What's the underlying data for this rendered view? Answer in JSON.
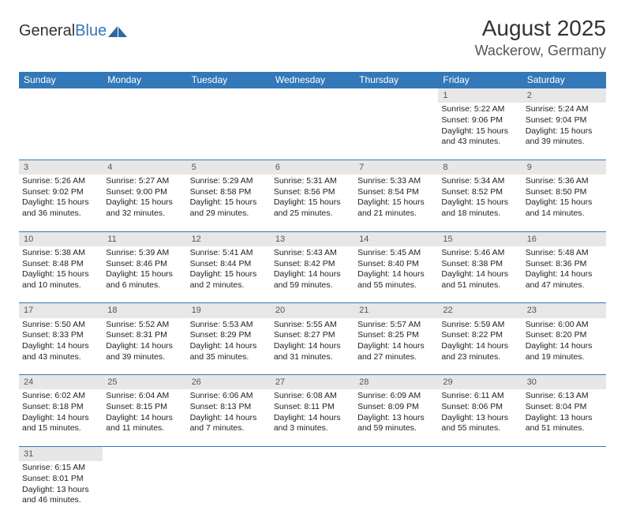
{
  "logo": {
    "text1": "General",
    "text2": "Blue",
    "shape_color": "#2d6aa3"
  },
  "header": {
    "month": "August 2025",
    "location": "Wackerow, Germany"
  },
  "colors": {
    "header_bg": "#3378b8",
    "header_text": "#ffffff",
    "daynum_bg": "#e7e7e7",
    "row_divider": "#3378b8",
    "text": "#222222"
  },
  "day_headers": [
    "Sunday",
    "Monday",
    "Tuesday",
    "Wednesday",
    "Thursday",
    "Friday",
    "Saturday"
  ],
  "weeks": [
    [
      null,
      null,
      null,
      null,
      null,
      {
        "n": "1",
        "sr": "Sunrise: 5:22 AM",
        "ss": "Sunset: 9:06 PM",
        "d1": "Daylight: 15 hours",
        "d2": "and 43 minutes."
      },
      {
        "n": "2",
        "sr": "Sunrise: 5:24 AM",
        "ss": "Sunset: 9:04 PM",
        "d1": "Daylight: 15 hours",
        "d2": "and 39 minutes."
      }
    ],
    [
      {
        "n": "3",
        "sr": "Sunrise: 5:26 AM",
        "ss": "Sunset: 9:02 PM",
        "d1": "Daylight: 15 hours",
        "d2": "and 36 minutes."
      },
      {
        "n": "4",
        "sr": "Sunrise: 5:27 AM",
        "ss": "Sunset: 9:00 PM",
        "d1": "Daylight: 15 hours",
        "d2": "and 32 minutes."
      },
      {
        "n": "5",
        "sr": "Sunrise: 5:29 AM",
        "ss": "Sunset: 8:58 PM",
        "d1": "Daylight: 15 hours",
        "d2": "and 29 minutes."
      },
      {
        "n": "6",
        "sr": "Sunrise: 5:31 AM",
        "ss": "Sunset: 8:56 PM",
        "d1": "Daylight: 15 hours",
        "d2": "and 25 minutes."
      },
      {
        "n": "7",
        "sr": "Sunrise: 5:33 AM",
        "ss": "Sunset: 8:54 PM",
        "d1": "Daylight: 15 hours",
        "d2": "and 21 minutes."
      },
      {
        "n": "8",
        "sr": "Sunrise: 5:34 AM",
        "ss": "Sunset: 8:52 PM",
        "d1": "Daylight: 15 hours",
        "d2": "and 18 minutes."
      },
      {
        "n": "9",
        "sr": "Sunrise: 5:36 AM",
        "ss": "Sunset: 8:50 PM",
        "d1": "Daylight: 15 hours",
        "d2": "and 14 minutes."
      }
    ],
    [
      {
        "n": "10",
        "sr": "Sunrise: 5:38 AM",
        "ss": "Sunset: 8:48 PM",
        "d1": "Daylight: 15 hours",
        "d2": "and 10 minutes."
      },
      {
        "n": "11",
        "sr": "Sunrise: 5:39 AM",
        "ss": "Sunset: 8:46 PM",
        "d1": "Daylight: 15 hours",
        "d2": "and 6 minutes."
      },
      {
        "n": "12",
        "sr": "Sunrise: 5:41 AM",
        "ss": "Sunset: 8:44 PM",
        "d1": "Daylight: 15 hours",
        "d2": "and 2 minutes."
      },
      {
        "n": "13",
        "sr": "Sunrise: 5:43 AM",
        "ss": "Sunset: 8:42 PM",
        "d1": "Daylight: 14 hours",
        "d2": "and 59 minutes."
      },
      {
        "n": "14",
        "sr": "Sunrise: 5:45 AM",
        "ss": "Sunset: 8:40 PM",
        "d1": "Daylight: 14 hours",
        "d2": "and 55 minutes."
      },
      {
        "n": "15",
        "sr": "Sunrise: 5:46 AM",
        "ss": "Sunset: 8:38 PM",
        "d1": "Daylight: 14 hours",
        "d2": "and 51 minutes."
      },
      {
        "n": "16",
        "sr": "Sunrise: 5:48 AM",
        "ss": "Sunset: 8:36 PM",
        "d1": "Daylight: 14 hours",
        "d2": "and 47 minutes."
      }
    ],
    [
      {
        "n": "17",
        "sr": "Sunrise: 5:50 AM",
        "ss": "Sunset: 8:33 PM",
        "d1": "Daylight: 14 hours",
        "d2": "and 43 minutes."
      },
      {
        "n": "18",
        "sr": "Sunrise: 5:52 AM",
        "ss": "Sunset: 8:31 PM",
        "d1": "Daylight: 14 hours",
        "d2": "and 39 minutes."
      },
      {
        "n": "19",
        "sr": "Sunrise: 5:53 AM",
        "ss": "Sunset: 8:29 PM",
        "d1": "Daylight: 14 hours",
        "d2": "and 35 minutes."
      },
      {
        "n": "20",
        "sr": "Sunrise: 5:55 AM",
        "ss": "Sunset: 8:27 PM",
        "d1": "Daylight: 14 hours",
        "d2": "and 31 minutes."
      },
      {
        "n": "21",
        "sr": "Sunrise: 5:57 AM",
        "ss": "Sunset: 8:25 PM",
        "d1": "Daylight: 14 hours",
        "d2": "and 27 minutes."
      },
      {
        "n": "22",
        "sr": "Sunrise: 5:59 AM",
        "ss": "Sunset: 8:22 PM",
        "d1": "Daylight: 14 hours",
        "d2": "and 23 minutes."
      },
      {
        "n": "23",
        "sr": "Sunrise: 6:00 AM",
        "ss": "Sunset: 8:20 PM",
        "d1": "Daylight: 14 hours",
        "d2": "and 19 minutes."
      }
    ],
    [
      {
        "n": "24",
        "sr": "Sunrise: 6:02 AM",
        "ss": "Sunset: 8:18 PM",
        "d1": "Daylight: 14 hours",
        "d2": "and 15 minutes."
      },
      {
        "n": "25",
        "sr": "Sunrise: 6:04 AM",
        "ss": "Sunset: 8:15 PM",
        "d1": "Daylight: 14 hours",
        "d2": "and 11 minutes."
      },
      {
        "n": "26",
        "sr": "Sunrise: 6:06 AM",
        "ss": "Sunset: 8:13 PM",
        "d1": "Daylight: 14 hours",
        "d2": "and 7 minutes."
      },
      {
        "n": "27",
        "sr": "Sunrise: 6:08 AM",
        "ss": "Sunset: 8:11 PM",
        "d1": "Daylight: 14 hours",
        "d2": "and 3 minutes."
      },
      {
        "n": "28",
        "sr": "Sunrise: 6:09 AM",
        "ss": "Sunset: 8:09 PM",
        "d1": "Daylight: 13 hours",
        "d2": "and 59 minutes."
      },
      {
        "n": "29",
        "sr": "Sunrise: 6:11 AM",
        "ss": "Sunset: 8:06 PM",
        "d1": "Daylight: 13 hours",
        "d2": "and 55 minutes."
      },
      {
        "n": "30",
        "sr": "Sunrise: 6:13 AM",
        "ss": "Sunset: 8:04 PM",
        "d1": "Daylight: 13 hours",
        "d2": "and 51 minutes."
      }
    ],
    [
      {
        "n": "31",
        "sr": "Sunrise: 6:15 AM",
        "ss": "Sunset: 8:01 PM",
        "d1": "Daylight: 13 hours",
        "d2": "and 46 minutes."
      },
      null,
      null,
      null,
      null,
      null,
      null
    ]
  ]
}
